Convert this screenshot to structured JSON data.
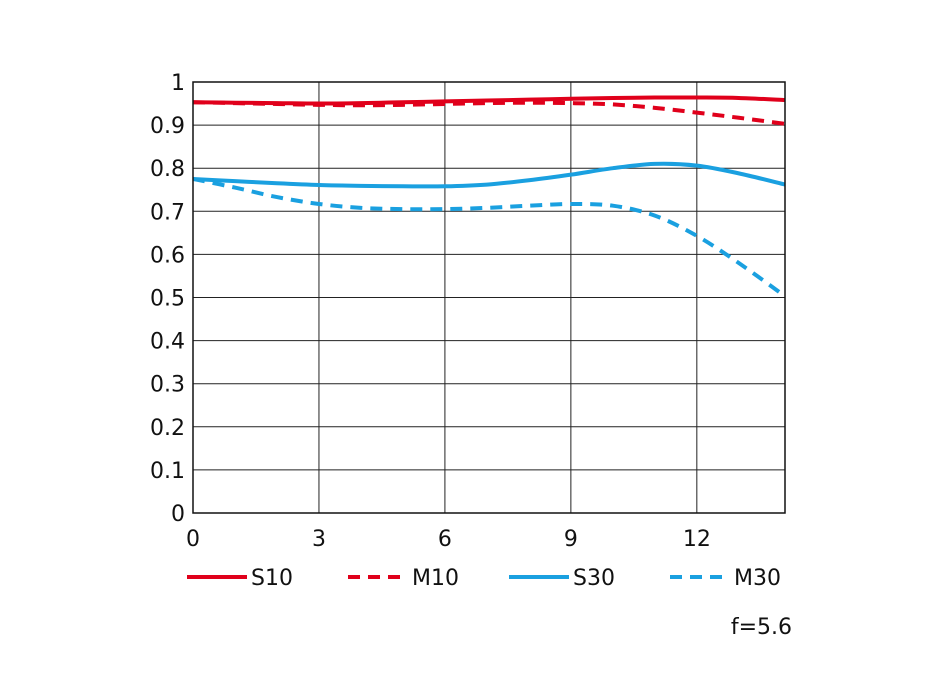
{
  "chart_data": {
    "type": "line",
    "x_ticks": [
      0,
      3,
      6,
      9,
      12
    ],
    "y_ticks": [
      0,
      0.1,
      0.2,
      0.3,
      0.4,
      0.5,
      0.6,
      0.7,
      0.8,
      0.9,
      1
    ],
    "y_tick_labels": [
      "0",
      "0.1",
      "0.2",
      "0.3",
      "0.4",
      "0.5",
      "0.6",
      "0.7",
      "0.8",
      "0.9",
      "1"
    ],
    "x_tick_labels": [
      "0",
      "3",
      "6",
      "9",
      "12"
    ],
    "xlim": [
      0,
      14.1
    ],
    "ylim": [
      0,
      1
    ],
    "grid": true,
    "legend_position": "bottom",
    "series": [
      {
        "name": "S10",
        "color": "#e0001b",
        "style": "solid",
        "x": [
          0,
          1,
          2,
          3,
          4,
          5,
          6,
          7,
          8,
          9,
          10,
          11,
          12,
          13,
          14.1
        ],
        "y": [
          0.953,
          0.952,
          0.951,
          0.95,
          0.951,
          0.953,
          0.955,
          0.957,
          0.959,
          0.961,
          0.963,
          0.964,
          0.964,
          0.963,
          0.958
        ]
      },
      {
        "name": "M10",
        "color": "#e0001b",
        "style": "dashed",
        "x": [
          0,
          1,
          2,
          3,
          4,
          5,
          6,
          7,
          8,
          9,
          10,
          11,
          12,
          13,
          14.1
        ],
        "y": [
          0.953,
          0.951,
          0.949,
          0.947,
          0.946,
          0.947,
          0.949,
          0.951,
          0.952,
          0.951,
          0.948,
          0.94,
          0.929,
          0.917,
          0.903
        ]
      },
      {
        "name": "S30",
        "color": "#1aa0e0",
        "style": "solid",
        "x": [
          0,
          1,
          2,
          3,
          4,
          5,
          6,
          7,
          8,
          9,
          10,
          11,
          12,
          13,
          14.1
        ],
        "y": [
          0.775,
          0.77,
          0.765,
          0.761,
          0.759,
          0.758,
          0.758,
          0.762,
          0.772,
          0.785,
          0.8,
          0.81,
          0.806,
          0.788,
          0.762
        ]
      },
      {
        "name": "M30",
        "color": "#1aa0e0",
        "style": "dashed",
        "x": [
          0,
          1,
          2,
          3,
          4,
          5,
          6,
          7,
          8,
          9,
          10,
          11,
          12,
          13,
          14.1
        ],
        "y": [
          0.775,
          0.755,
          0.733,
          0.717,
          0.708,
          0.705,
          0.705,
          0.708,
          0.713,
          0.717,
          0.713,
          0.69,
          0.643,
          0.58,
          0.503
        ]
      }
    ]
  },
  "note": "f=5.6"
}
